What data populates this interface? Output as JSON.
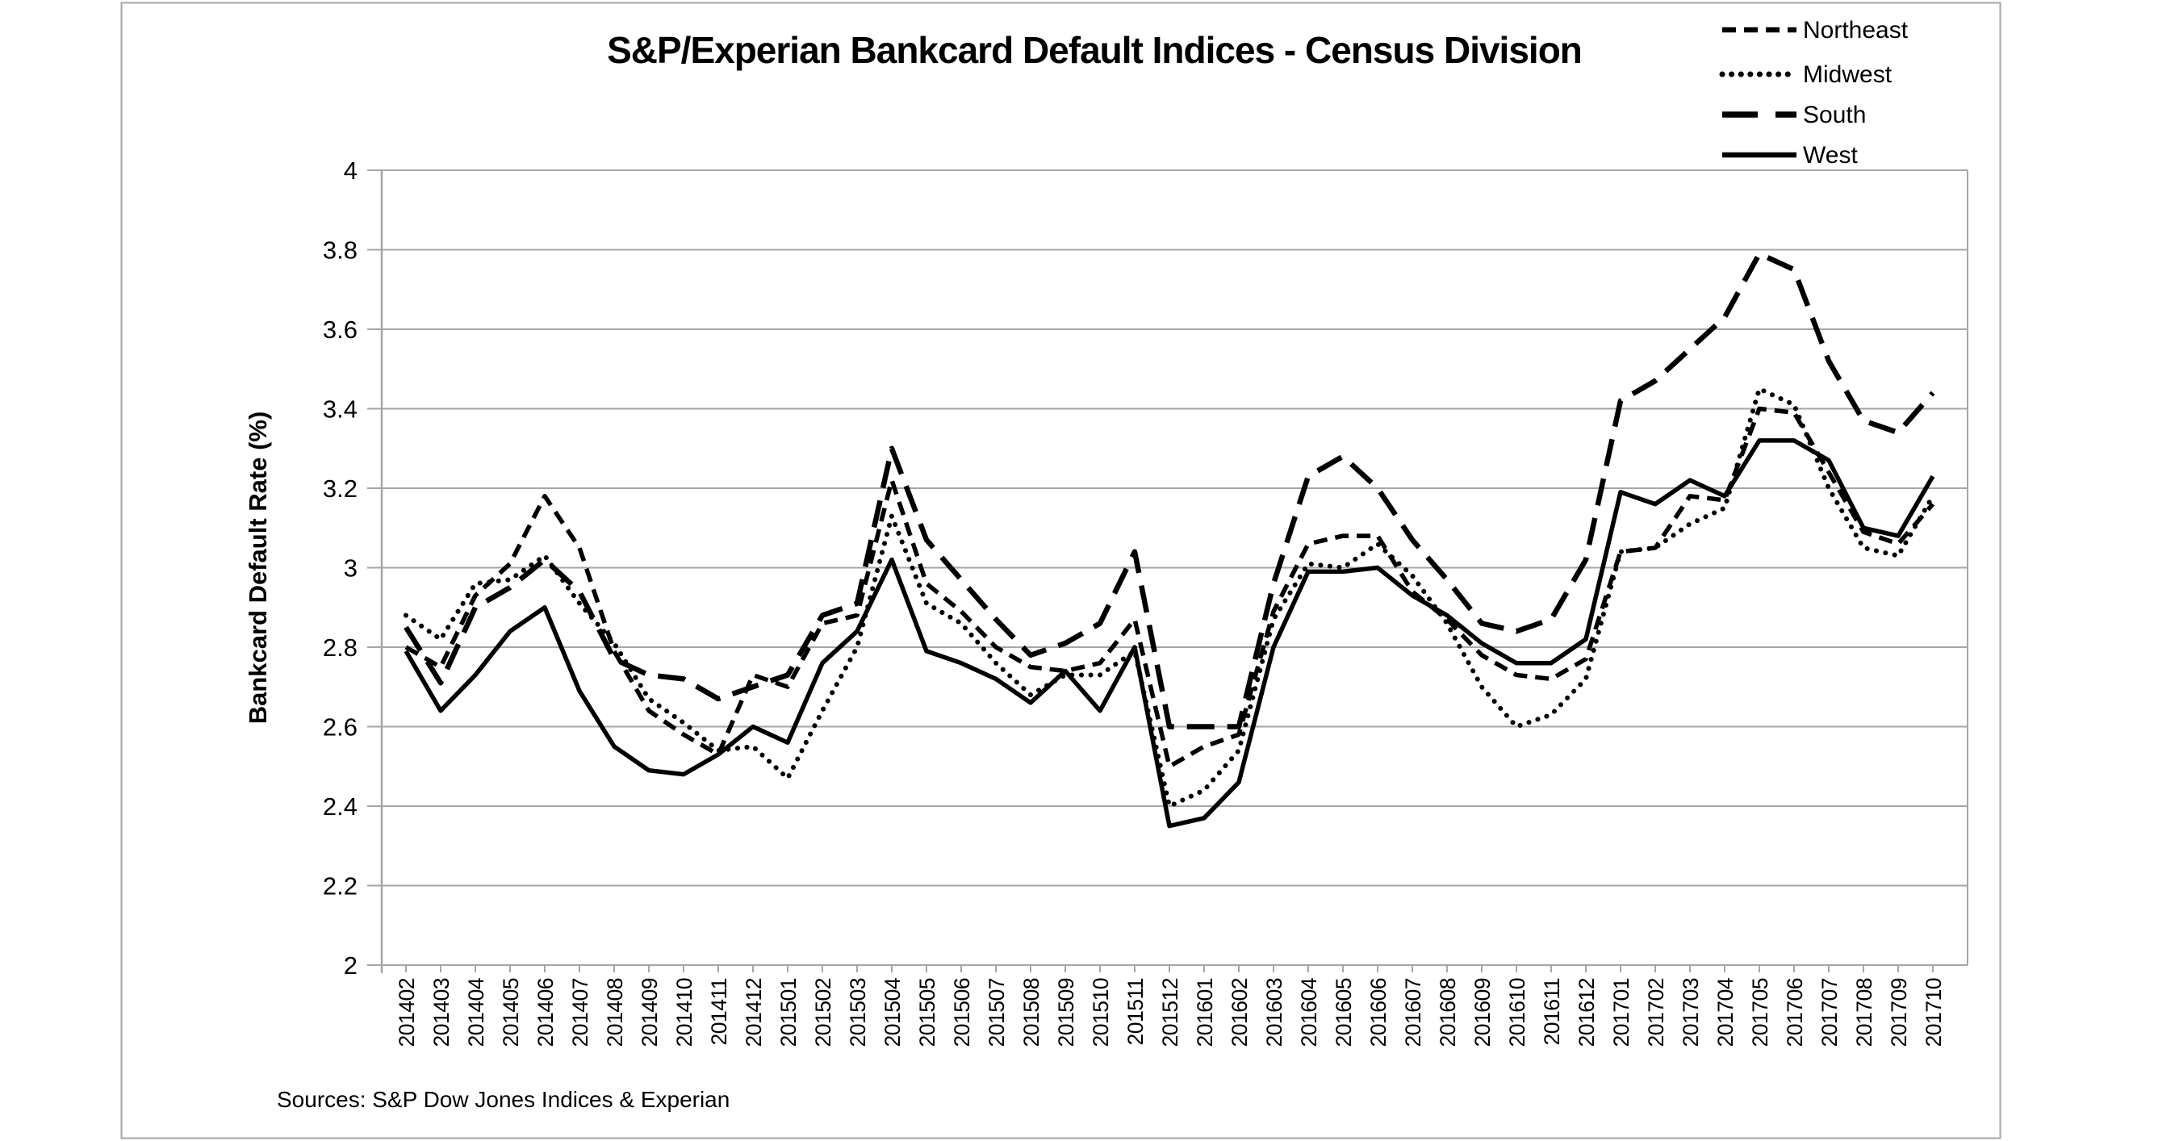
{
  "page": {
    "background": "#ffffff",
    "frame_color": "#a6a6a6"
  },
  "header": {
    "title": "S&P/Experian Bankcard Default Indices - Census Division"
  },
  "footer": {
    "source": "Sources: S&P Dow Jones Indices & Experian"
  },
  "chart_data": {
    "type": "line",
    "title": "S&P/Experian Bankcard Default Indices - Census Division",
    "xlabel": "",
    "ylabel": "Bankcard Default Rate (%)",
    "ylim": [
      2,
      4
    ],
    "ytick_step": 0.2,
    "grid": true,
    "legend_position": "top-right",
    "line_color": "#000000",
    "grid_color": "#a6a6a6",
    "categories": [
      "201402",
      "201403",
      "201404",
      "201405",
      "201406",
      "201407",
      "201408",
      "201409",
      "201410",
      "201411",
      "201412",
      "201501",
      "201502",
      "201503",
      "201504",
      "201505",
      "201506",
      "201507",
      "201508",
      "201509",
      "201510",
      "201511",
      "201512",
      "201601",
      "201602",
      "201603",
      "201604",
      "201605",
      "201606",
      "201607",
      "201608",
      "201609",
      "201610",
      "201611",
      "201612",
      "201701",
      "201702",
      "201703",
      "201704",
      "201705",
      "201706",
      "201707",
      "201708",
      "201709",
      "201710"
    ],
    "series": [
      {
        "name": "Northeast",
        "style": "dash",
        "values": [
          2.8,
          2.75,
          2.93,
          3.01,
          3.18,
          3.05,
          2.79,
          2.64,
          2.58,
          2.53,
          2.73,
          2.7,
          2.86,
          2.88,
          3.22,
          2.96,
          2.89,
          2.8,
          2.75,
          2.74,
          2.76,
          2.87,
          2.5,
          2.55,
          2.58,
          2.89,
          3.06,
          3.08,
          3.08,
          2.94,
          2.87,
          2.78,
          2.73,
          2.72,
          2.77,
          3.04,
          3.05,
          3.18,
          3.17,
          3.4,
          3.39,
          3.24,
          3.09,
          3.06,
          3.16
        ]
      },
      {
        "name": "Midwest",
        "style": "dot",
        "values": [
          2.88,
          2.82,
          2.96,
          2.97,
          3.03,
          2.91,
          2.81,
          2.67,
          2.61,
          2.54,
          2.55,
          2.47,
          2.64,
          2.8,
          3.13,
          2.91,
          2.86,
          2.76,
          2.68,
          2.73,
          2.73,
          2.79,
          2.4,
          2.44,
          2.54,
          2.87,
          3.01,
          3.0,
          3.06,
          2.98,
          2.86,
          2.7,
          2.6,
          2.63,
          2.72,
          3.04,
          3.05,
          3.11,
          3.15,
          3.45,
          3.41,
          3.2,
          3.05,
          3.03,
          3.18
        ]
      },
      {
        "name": "South",
        "style": "longdash",
        "values": [
          2.85,
          2.71,
          2.9,
          2.95,
          3.02,
          2.94,
          2.77,
          2.73,
          2.72,
          2.67,
          2.7,
          2.73,
          2.88,
          2.91,
          3.3,
          3.07,
          2.97,
          2.87,
          2.78,
          2.81,
          2.86,
          3.04,
          2.6,
          2.6,
          2.6,
          2.96,
          3.23,
          3.28,
          3.2,
          3.07,
          2.97,
          2.86,
          2.84,
          2.87,
          3.02,
          3.42,
          3.47,
          3.55,
          3.63,
          3.79,
          3.75,
          3.52,
          3.37,
          3.34,
          3.44
        ]
      },
      {
        "name": "West",
        "style": "solid",
        "values": [
          2.79,
          2.64,
          2.73,
          2.84,
          2.9,
          2.69,
          2.55,
          2.49,
          2.48,
          2.53,
          2.6,
          2.56,
          2.76,
          2.84,
          3.02,
          2.79,
          2.76,
          2.72,
          2.66,
          2.74,
          2.64,
          2.8,
          2.35,
          2.37,
          2.46,
          2.8,
          2.99,
          2.99,
          3.0,
          2.93,
          2.88,
          2.81,
          2.76,
          2.76,
          2.82,
          3.19,
          3.16,
          3.22,
          3.18,
          3.32,
          3.32,
          3.27,
          3.1,
          3.08,
          3.23
        ]
      }
    ]
  }
}
